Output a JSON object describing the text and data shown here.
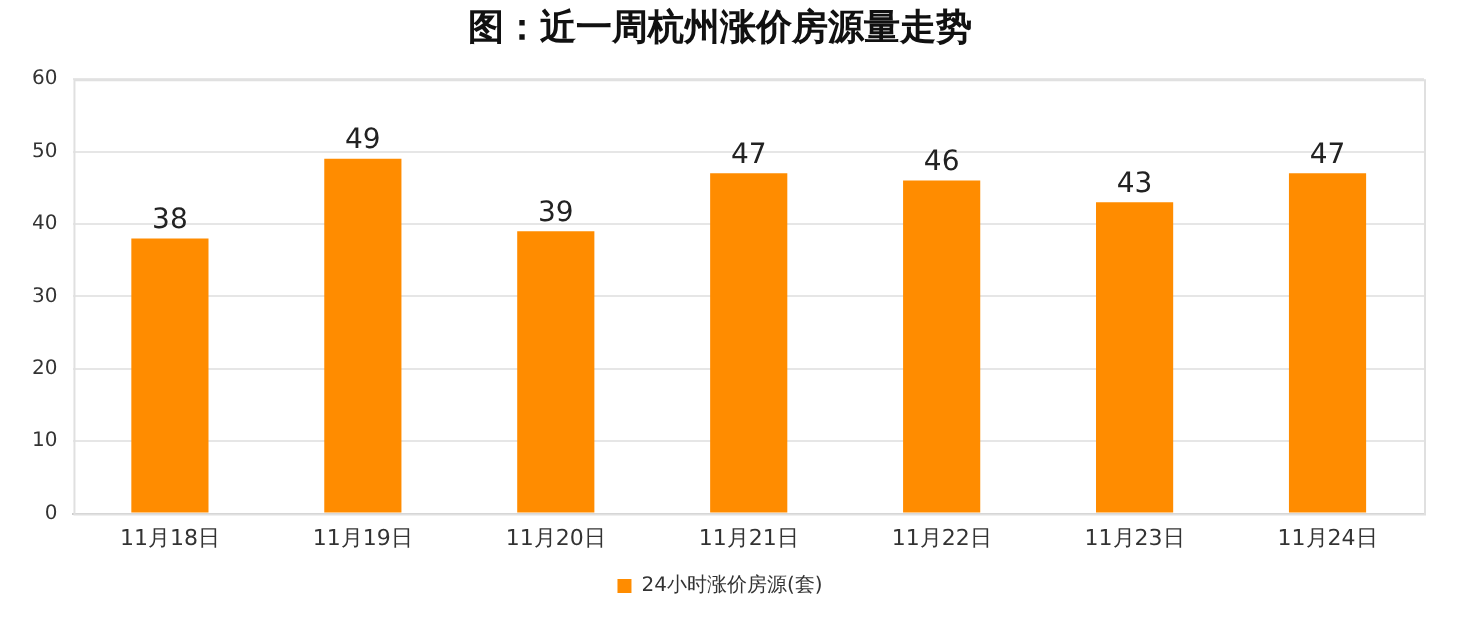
{
  "chart_data": {
    "type": "bar",
    "title": "图：近一周杭州涨价房源量走势",
    "categories": [
      "11月18日",
      "11月19日",
      "11月20日",
      "11月21日",
      "11月22日",
      "11月23日",
      "11月24日"
    ],
    "series": [
      {
        "name": "24小时涨价房源(套)",
        "color": "#ff8c00",
        "values": [
          38,
          49,
          39,
          47,
          46,
          43,
          47
        ]
      }
    ],
    "ylim": [
      0,
      60
    ],
    "yticks": [
      0,
      10,
      20,
      30,
      40,
      50,
      60
    ],
    "grid": "y",
    "legend": "bottom",
    "data_labels": true
  }
}
